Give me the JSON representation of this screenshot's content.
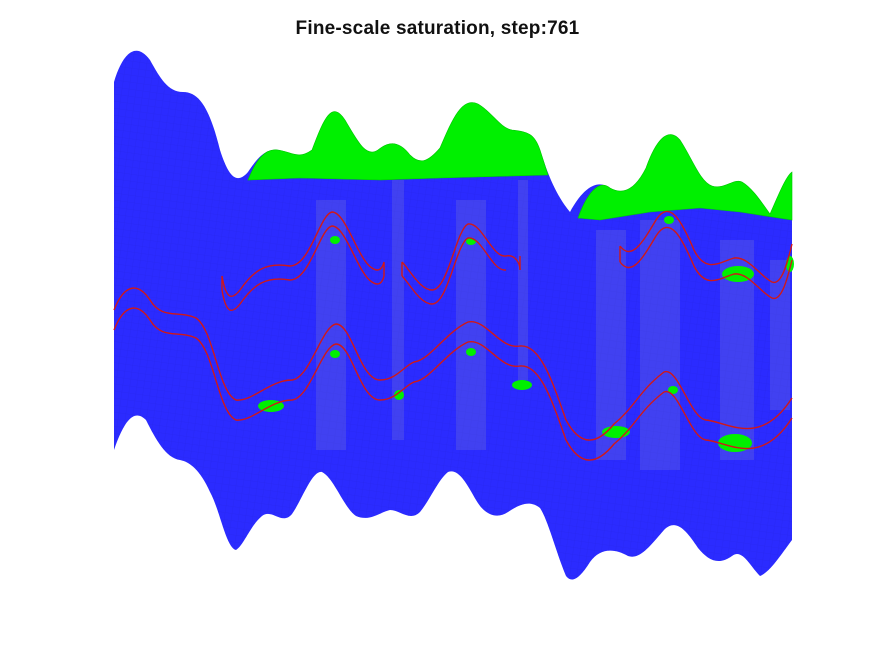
{
  "chart_data": {
    "type": "heatmap",
    "title": "Fine-scale saturation, step:761",
    "xlabel": "",
    "ylabel": "",
    "grid": false,
    "legend": "none",
    "colors": {
      "domain": "#2b2bff",
      "saturated": "#00f000",
      "fracture": "#d01818",
      "background": "#ffffff"
    }
  }
}
